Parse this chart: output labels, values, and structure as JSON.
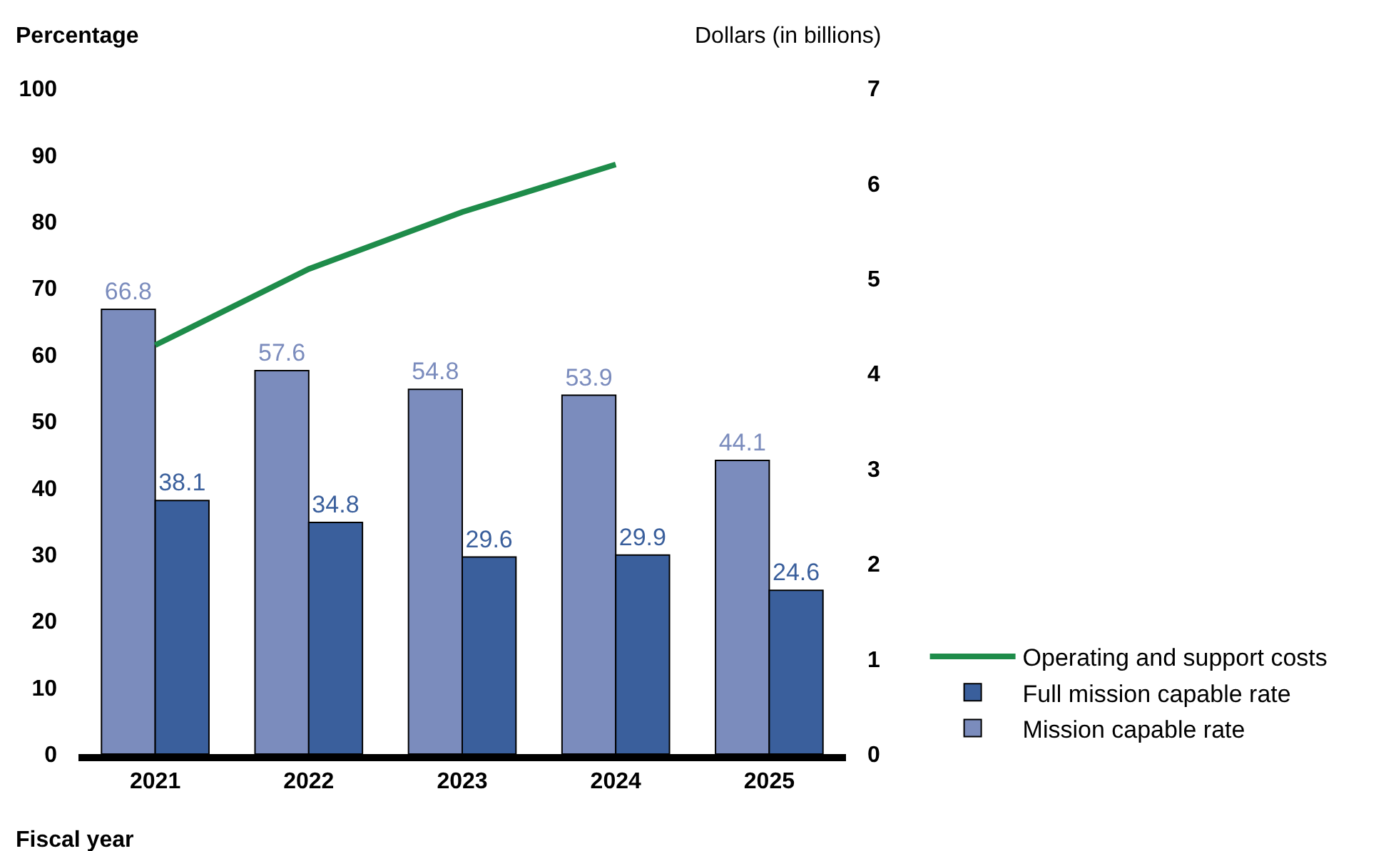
{
  "chart_data": {
    "type": "bar",
    "categories": [
      "2021",
      "2022",
      "2023",
      "2024",
      "2025"
    ],
    "xlabel": "Fiscal year",
    "ylabel": "Percentage",
    "y2label": "Dollars (in billions)",
    "ylim": [
      0,
      100
    ],
    "yticks": [
      0,
      10,
      20,
      30,
      40,
      50,
      60,
      70,
      80,
      90,
      100
    ],
    "y2lim": [
      0,
      7
    ],
    "y2ticks": [
      0,
      1,
      2,
      3,
      4,
      5,
      6,
      7
    ],
    "series": [
      {
        "name": "Mission capable rate",
        "color": "#7b8cbd",
        "values": [
          66.8,
          57.6,
          54.8,
          53.9,
          44.1
        ],
        "value_labels": [
          "66.8",
          "57.6",
          "54.8",
          "53.9",
          "44.1"
        ]
      },
      {
        "name": "Full mission capable rate",
        "color": "#3a5f9c",
        "values": [
          38.1,
          34.8,
          29.6,
          29.9,
          24.6
        ],
        "value_labels": [
          "38.1",
          "34.8",
          "29.6",
          "29.9",
          "24.6"
        ]
      },
      {
        "name": "Operating and support costs",
        "type": "line",
        "axis": "y2",
        "color": "#1e8c4a",
        "values": [
          4.3,
          5.1,
          5.7,
          6.2,
          null
        ]
      }
    ],
    "grid": false,
    "legend": "bottom right",
    "marker": "none",
    "line_style": "solid"
  }
}
